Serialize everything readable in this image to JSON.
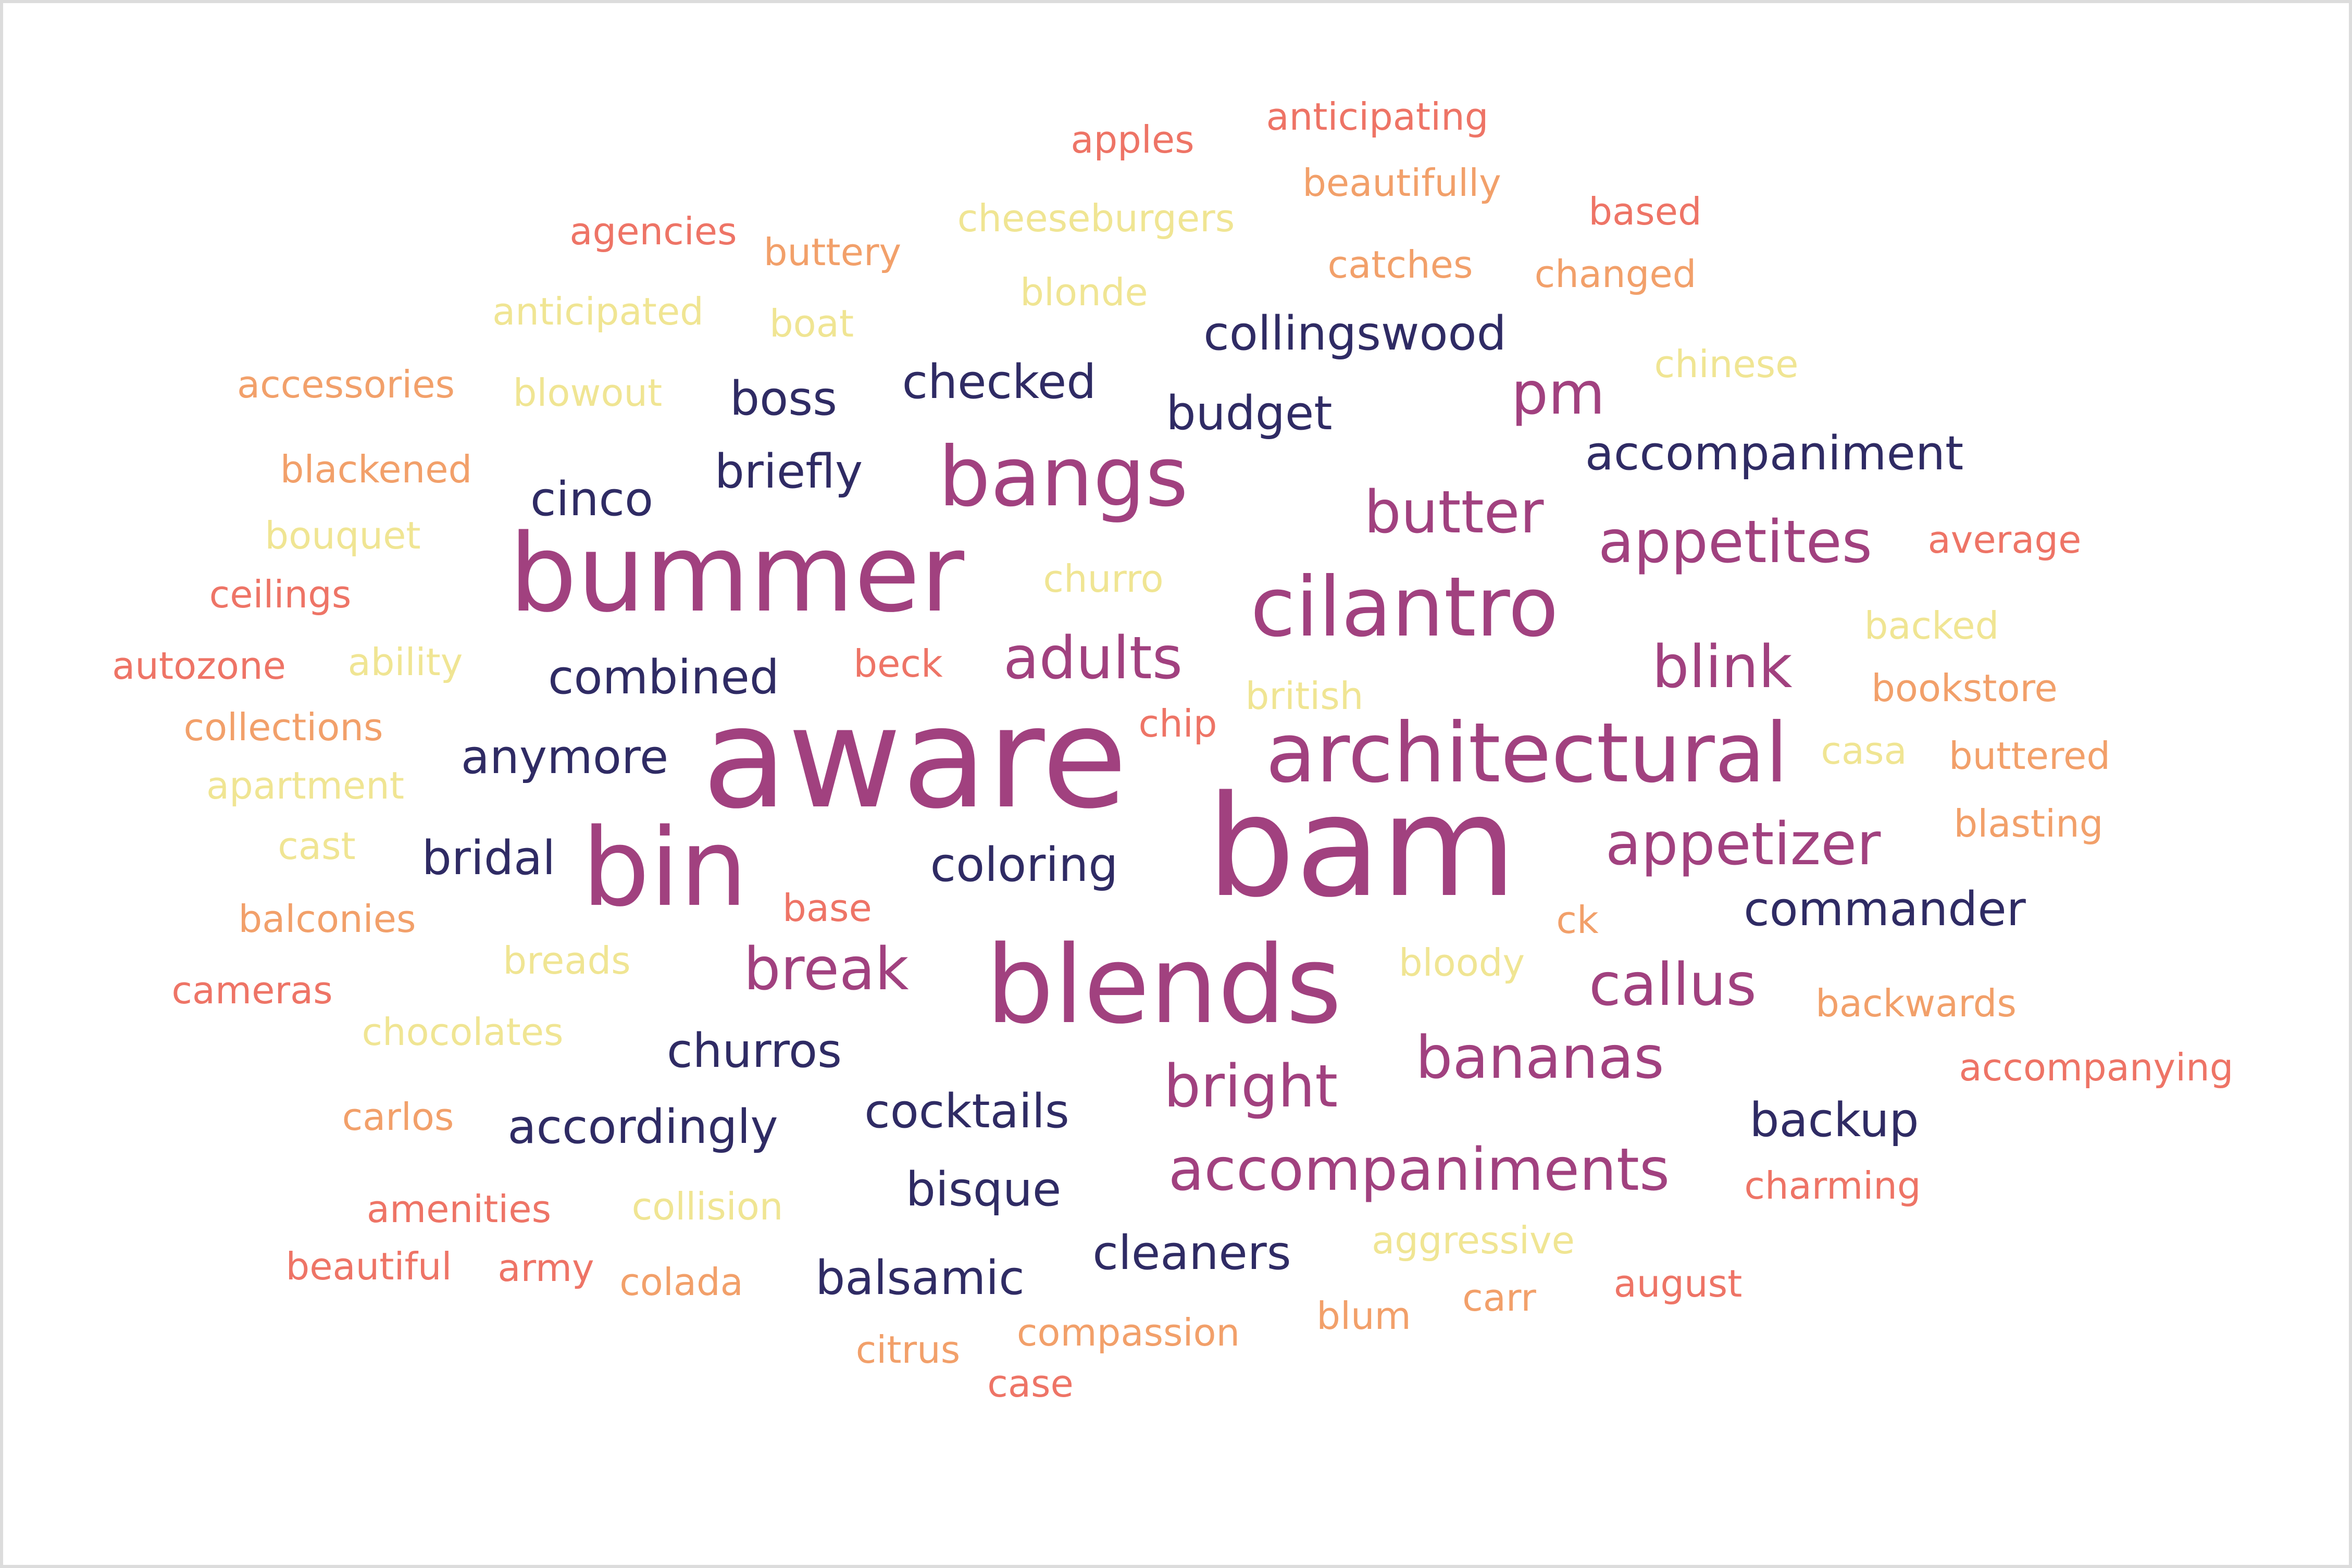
{
  "colors": {
    "magenta": "#a1417f",
    "navy": "#2f2b64",
    "orange": "#f2a06a",
    "coral": "#ee7466",
    "yellow": "#f0e593"
  },
  "words": [
    {
      "text": "bam",
      "color": "magenta",
      "tier": 5
    },
    {
      "text": "aware",
      "color": "magenta",
      "tier": 5
    },
    {
      "text": "bummer",
      "color": "magenta",
      "tier": 4
    },
    {
      "text": "blends",
      "color": "magenta",
      "tier": 4
    },
    {
      "text": "bin",
      "color": "magenta",
      "tier": 4
    },
    {
      "text": "cilantro",
      "color": "magenta",
      "tier": 3
    },
    {
      "text": "bangs",
      "color": "magenta",
      "tier": 3
    },
    {
      "text": "architectural",
      "color": "magenta",
      "tier": 3
    },
    {
      "text": "break",
      "color": "magenta",
      "tier": 2
    },
    {
      "text": "callus",
      "color": "magenta",
      "tier": 2
    },
    {
      "text": "appetizer",
      "color": "magenta",
      "tier": 2
    },
    {
      "text": "bananas",
      "color": "magenta",
      "tier": 2
    },
    {
      "text": "bright",
      "color": "magenta",
      "tier": 2
    },
    {
      "text": "appetites",
      "color": "magenta",
      "tier": 2
    },
    {
      "text": "blink",
      "color": "magenta",
      "tier": 2
    },
    {
      "text": "adults",
      "color": "magenta",
      "tier": 2
    },
    {
      "text": "pm",
      "color": "magenta",
      "tier": 2
    },
    {
      "text": "butter",
      "color": "magenta",
      "tier": 2
    },
    {
      "text": "accompaniments",
      "color": "magenta",
      "tier": 2
    },
    {
      "text": "checked",
      "color": "navy",
      "tier": 1
    },
    {
      "text": "briefly",
      "color": "navy",
      "tier": 1
    },
    {
      "text": "budget",
      "color": "navy",
      "tier": 1
    },
    {
      "text": "combined",
      "color": "navy",
      "tier": 1
    },
    {
      "text": "coloring",
      "color": "navy",
      "tier": 1
    },
    {
      "text": "cocktails",
      "color": "navy",
      "tier": 1
    },
    {
      "text": "churros",
      "color": "navy",
      "tier": 1
    },
    {
      "text": "anymore",
      "color": "navy",
      "tier": 1
    },
    {
      "text": "commander",
      "color": "navy",
      "tier": 1
    },
    {
      "text": "collingswood",
      "color": "navy",
      "tier": 1
    },
    {
      "text": "accompaniment",
      "color": "navy",
      "tier": 1
    },
    {
      "text": "boss",
      "color": "navy",
      "tier": 1
    },
    {
      "text": "cinco",
      "color": "navy",
      "tier": 1
    },
    {
      "text": "bridal",
      "color": "navy",
      "tier": 1
    },
    {
      "text": "accordingly",
      "color": "navy",
      "tier": 1
    },
    {
      "text": "bisque",
      "color": "navy",
      "tier": 1
    },
    {
      "text": "balsamic",
      "color": "navy",
      "tier": 1
    },
    {
      "text": "cleaners",
      "color": "navy",
      "tier": 1
    },
    {
      "text": "backup",
      "color": "navy",
      "tier": 1
    },
    {
      "text": "anticipating",
      "color": "coral",
      "tier": 0
    },
    {
      "text": "apples",
      "color": "coral",
      "tier": 0
    },
    {
      "text": "beautifully",
      "color": "orange",
      "tier": 0
    },
    {
      "text": "agencies",
      "color": "coral",
      "tier": 0
    },
    {
      "text": "cheeseburgers",
      "color": "yellow",
      "tier": 0
    },
    {
      "text": "based",
      "color": "coral",
      "tier": 0
    },
    {
      "text": "buttery",
      "color": "orange",
      "tier": 0
    },
    {
      "text": "catches",
      "color": "orange",
      "tier": 0
    },
    {
      "text": "changed",
      "color": "orange",
      "tier": 0
    },
    {
      "text": "blonde",
      "color": "yellow",
      "tier": 0
    },
    {
      "text": "anticipated",
      "color": "yellow",
      "tier": 0
    },
    {
      "text": "boat",
      "color": "yellow",
      "tier": 0
    },
    {
      "text": "chinese",
      "color": "yellow",
      "tier": 0
    },
    {
      "text": "accessories",
      "color": "orange",
      "tier": 0
    },
    {
      "text": "blowout",
      "color": "yellow",
      "tier": 0
    },
    {
      "text": "blackened",
      "color": "orange",
      "tier": 0
    },
    {
      "text": "bouquet",
      "color": "yellow",
      "tier": 0
    },
    {
      "text": "average",
      "color": "coral",
      "tier": 0
    },
    {
      "text": "churro",
      "color": "yellow",
      "tier": 0
    },
    {
      "text": "ceilings",
      "color": "coral",
      "tier": 0
    },
    {
      "text": "backed",
      "color": "yellow",
      "tier": 0
    },
    {
      "text": "autozone",
      "color": "coral",
      "tier": 0
    },
    {
      "text": "ability",
      "color": "yellow",
      "tier": 0
    },
    {
      "text": "beck",
      "color": "coral",
      "tier": 0
    },
    {
      "text": "bookstore",
      "color": "orange",
      "tier": 0
    },
    {
      "text": "british",
      "color": "yellow",
      "tier": 0
    },
    {
      "text": "chip",
      "color": "coral",
      "tier": 0
    },
    {
      "text": "collections",
      "color": "orange",
      "tier": 0
    },
    {
      "text": "casa",
      "color": "yellow",
      "tier": 0
    },
    {
      "text": "buttered",
      "color": "orange",
      "tier": 0
    },
    {
      "text": "apartment",
      "color": "yellow",
      "tier": 0
    },
    {
      "text": "blasting",
      "color": "orange",
      "tier": 0
    },
    {
      "text": "cast",
      "color": "yellow",
      "tier": 0
    },
    {
      "text": "balconies",
      "color": "orange",
      "tier": 0
    },
    {
      "text": "base",
      "color": "coral",
      "tier": 0
    },
    {
      "text": "ck",
      "color": "orange",
      "tier": 0
    },
    {
      "text": "breads",
      "color": "yellow",
      "tier": 0
    },
    {
      "text": "bloody",
      "color": "yellow",
      "tier": 0
    },
    {
      "text": "cameras",
      "color": "coral",
      "tier": 0
    },
    {
      "text": "backwards",
      "color": "orange",
      "tier": 0
    },
    {
      "text": "chocolates",
      "color": "yellow",
      "tier": 0
    },
    {
      "text": "accompanying",
      "color": "coral",
      "tier": 0
    },
    {
      "text": "carlos",
      "color": "orange",
      "tier": 0
    },
    {
      "text": "charming",
      "color": "coral",
      "tier": 0
    },
    {
      "text": "amenities",
      "color": "coral",
      "tier": 0
    },
    {
      "text": "collision",
      "color": "yellow",
      "tier": 0
    },
    {
      "text": "aggressive",
      "color": "yellow",
      "tier": 0
    },
    {
      "text": "beautiful",
      "color": "coral",
      "tier": 0
    },
    {
      "text": "army",
      "color": "coral",
      "tier": 0
    },
    {
      "text": "colada",
      "color": "orange",
      "tier": 0
    },
    {
      "text": "blum",
      "color": "orange",
      "tier": 0
    },
    {
      "text": "carr",
      "color": "orange",
      "tier": 0
    },
    {
      "text": "august",
      "color": "coral",
      "tier": 0
    },
    {
      "text": "compassion",
      "color": "orange",
      "tier": 0
    },
    {
      "text": "citrus",
      "color": "orange",
      "tier": 0
    },
    {
      "text": "case",
      "color": "coral",
      "tier": 0
    }
  ]
}
